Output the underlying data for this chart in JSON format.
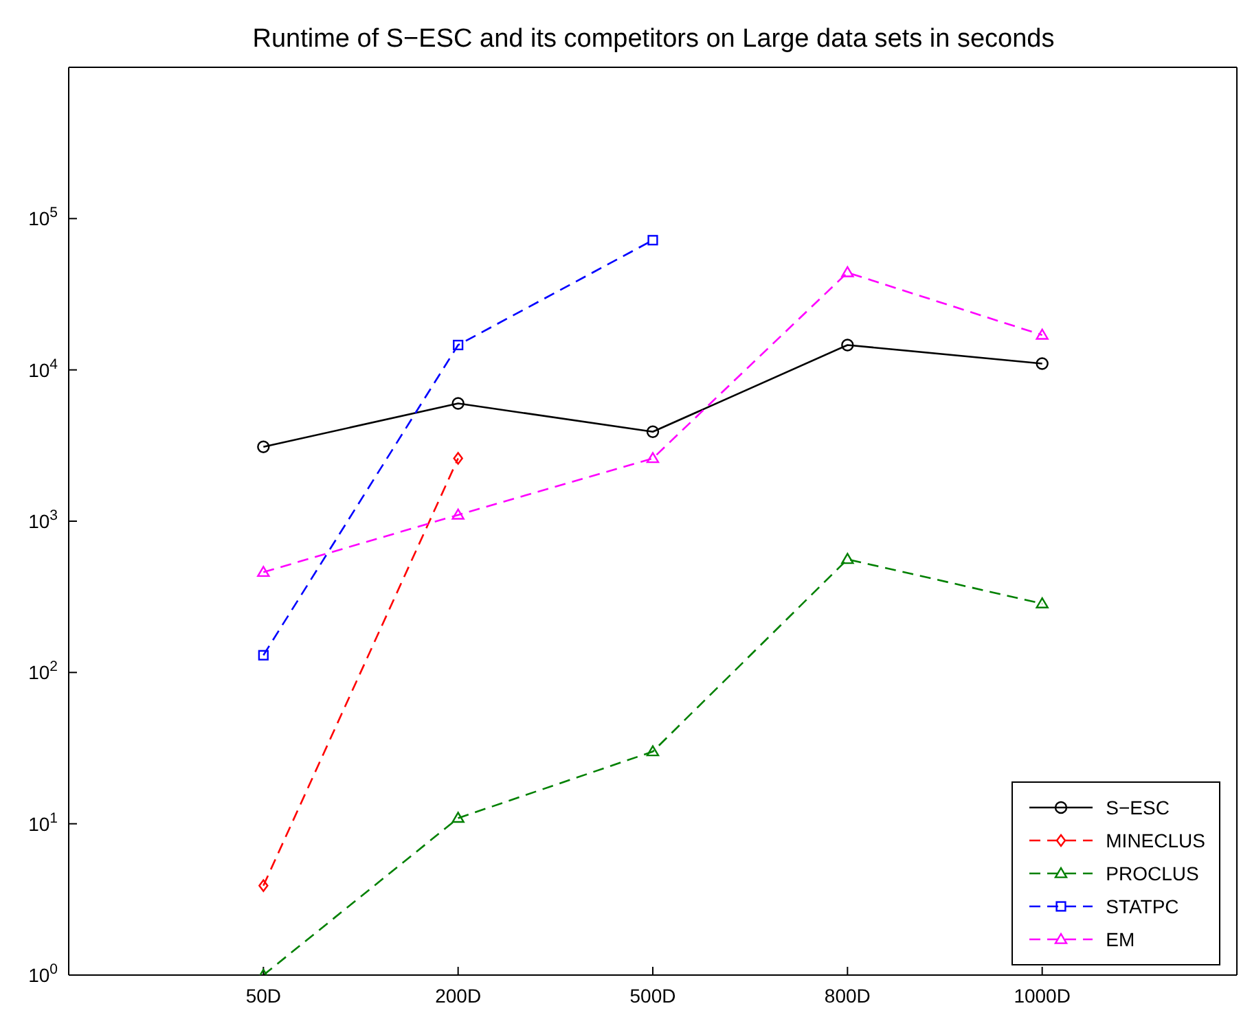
{
  "chart_data": {
    "type": "line",
    "title": "Runtime of S−ESC and its competitors on Large data sets in seconds",
    "categories": [
      "50D",
      "200D",
      "500D",
      "800D",
      "1000D"
    ],
    "series": [
      {
        "name": "S−ESC",
        "color": "#000000",
        "marker": "circle",
        "line_style": "solid",
        "values": [
          3100,
          6000,
          3900,
          14600,
          11000
        ]
      },
      {
        "name": "MINECLUS",
        "color": "#ff0000",
        "marker": "diamond",
        "line_style": "dashed",
        "values": [
          3.9,
          2600,
          null,
          null,
          null
        ]
      },
      {
        "name": "PROCLUS",
        "color": "#008000",
        "marker": "triangle",
        "line_style": "dashed",
        "values": [
          1,
          10.9,
          30,
          560,
          285
        ]
      },
      {
        "name": "STATPC",
        "color": "#0000ff",
        "marker": "square",
        "line_style": "dashed",
        "values": [
          130,
          14600,
          72000,
          null,
          null
        ]
      },
      {
        "name": "EM",
        "color": "#ff00ff",
        "marker": "triangle",
        "line_style": "dashed",
        "values": [
          460,
          1100,
          2600,
          44000,
          17000
        ]
      }
    ],
    "log": "y",
    "ylim": [
      1,
      1000000
    ],
    "yticks": [
      {
        "value": 1,
        "label": "10$^{0}$"
      },
      {
        "value": 10,
        "label": "10$^{1}$"
      },
      {
        "value": 100,
        "label": "10$^{2}$"
      },
      {
        "value": 1000,
        "label": "10$^{3}$"
      },
      {
        "value": 10000,
        "label": "10$^{4}$"
      },
      {
        "value": 100000,
        "label": "10$^{5}$"
      }
    ],
    "grid": false,
    "legend": "bottom right"
  }
}
